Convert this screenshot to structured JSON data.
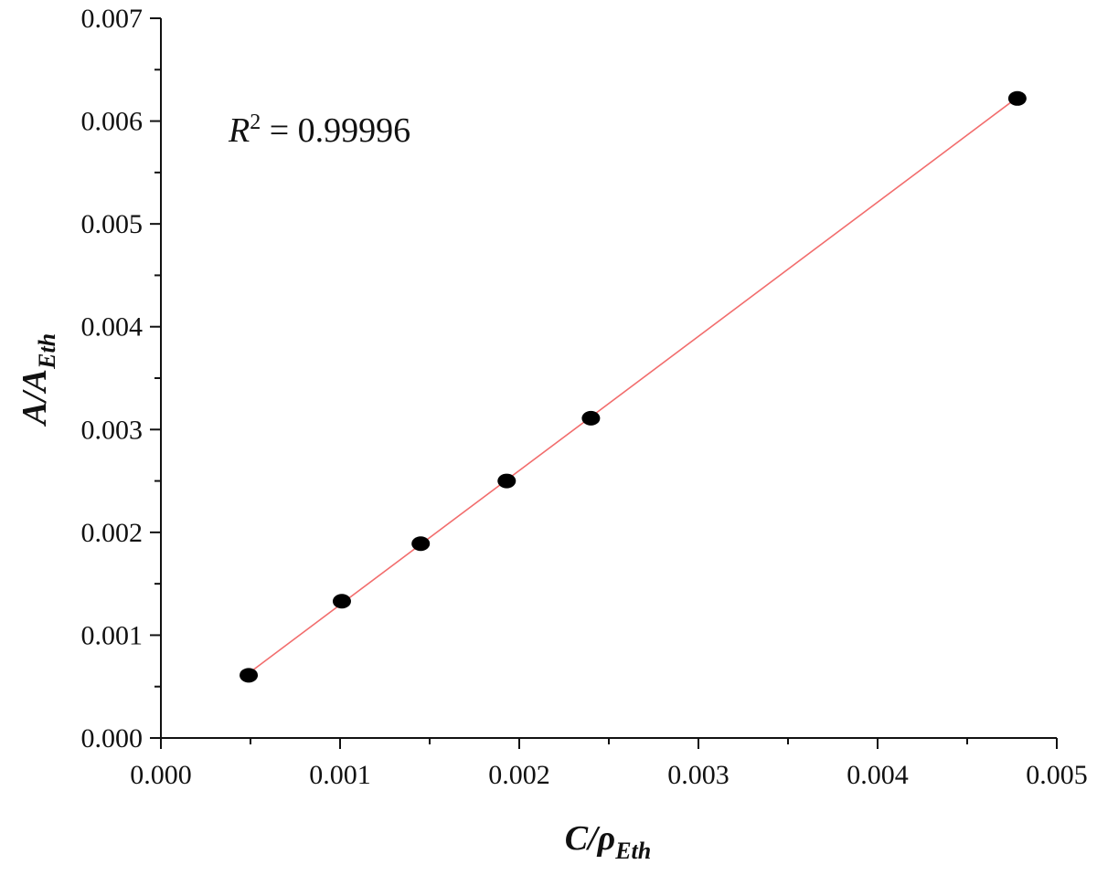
{
  "chart_data": {
    "type": "scatter",
    "x_label": {
      "main": "C/ρ",
      "sub": "Eth"
    },
    "y_label": {
      "main": "A/A",
      "sub": "Eth"
    },
    "annotation": {
      "symbol": "R",
      "superscript": "2",
      "text": " = 0.99996"
    },
    "series": [
      {
        "color": "#000000",
        "x": [
          0.00049,
          0.00101,
          0.00145,
          0.00193,
          0.0024,
          0.00478
        ],
        "values": [
          0.00061,
          0.00133,
          0.00189,
          0.0025,
          0.00311,
          0.00622
        ]
      }
    ],
    "fit": {
      "color": "#f26d6d",
      "x": [
        0.00049,
        0.00478
      ],
      "values": [
        0.00063,
        0.00623
      ]
    },
    "xlim": [
      0,
      0.005
    ],
    "ylim": [
      0,
      0.007
    ],
    "xticks": [
      {
        "value": 0,
        "label": "0.000"
      },
      0.001,
      0.002,
      0.003,
      0.004,
      0.005
    ],
    "yticks": [
      {
        "value": 0,
        "label": "0.000"
      },
      0.001,
      0.002,
      0.003,
      0.004,
      0.005,
      0.006,
      0.007
    ],
    "x_minor_ticks": [
      0.0005,
      0.0015,
      0.0025,
      0.0035,
      0.0045
    ],
    "y_minor_ticks": [
      0.0005,
      0.0015,
      0.0025,
      0.0035,
      0.0045,
      0.0055,
      0.0065
    ]
  }
}
